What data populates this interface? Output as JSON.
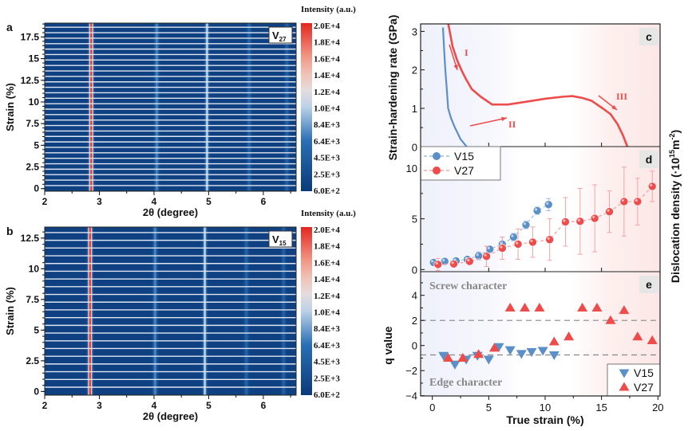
{
  "chart_data": [
    {
      "panel": "a",
      "type": "heatmap",
      "sample_label": "V27",
      "xlabel": "2θ (degree)",
      "ylabel": "Strain (%)",
      "xlim": [
        2,
        6.6
      ],
      "ylim": [
        -0.3,
        19.1
      ],
      "xticks": [
        2,
        3,
        4,
        5,
        6
      ],
      "yticks": [
        0,
        2.5,
        5,
        7.5,
        10,
        12.5,
        15,
        17.5
      ],
      "peaks_2theta": [
        2.85,
        4.05,
        4.97,
        5.74,
        6.43
      ],
      "colorbar": {
        "title": "Intensity (a.u.)",
        "labels": [
          "2.0E+4",
          "1.8E+4",
          "1.6E+4",
          "1.4E+4",
          "1.2E+4",
          "1.0E+4",
          "8.4E+3",
          "6.4E+3",
          "4.5E+3",
          "2.5E+3",
          "6.0E+2"
        ],
        "colors": [
          "#0b3a7a",
          "#2a6fb5",
          "#dfe9f3",
          "#f5b5a0",
          "#e3261f"
        ]
      }
    },
    {
      "panel": "b",
      "type": "heatmap",
      "sample_label": "V15",
      "xlabel": "2θ (degree)",
      "ylabel": "Strain (%)",
      "xlim": [
        2,
        6.6
      ],
      "ylim": [
        -0.3,
        13.4
      ],
      "xticks": [
        2,
        3,
        4,
        5,
        6
      ],
      "yticks": [
        0,
        2.5,
        5,
        7.5,
        10,
        12.5
      ],
      "peaks_2theta": [
        2.83,
        4.02,
        4.93,
        5.69,
        6.37
      ],
      "colorbar": {
        "title": "Intensity (a.u.)",
        "labels": [
          "2.0E+4",
          "1.8E+4",
          "1.6E+4",
          "1.4E+4",
          "1.2E+4",
          "1.0E+4",
          "8.4E+3",
          "6.4E+3",
          "4.5E+3",
          "2.5E+3",
          "6.0E+2"
        ]
      }
    },
    {
      "panel": "c",
      "type": "line",
      "ylabel": "Strain-hardening rate (GPa)",
      "xlim": [
        -1,
        20
      ],
      "ylim": [
        0,
        3.2
      ],
      "yticks": [
        0,
        1,
        2,
        3
      ],
      "annotations": [
        "I",
        "II",
        "III"
      ],
      "series": [
        {
          "name": "V15",
          "color": "#5b8fc7",
          "x": [
            0.94,
            1.05,
            1.15,
            1.28,
            1.4,
            1.65,
            2.0,
            2.5,
            3.06
          ],
          "y": [
            3.1,
            2.5,
            2.0,
            1.5,
            1.0,
            0.75,
            0.5,
            0.2,
            0.0
          ]
        },
        {
          "name": "V27",
          "color": "#ee4b4b",
          "x": [
            1.41,
            1.8,
            2.2,
            2.57,
            3.0,
            3.5,
            4.3,
            5.3,
            6.7,
            8.5,
            10.0,
            11.5,
            12.4,
            13.3,
            14.1,
            15.1,
            15.8,
            16.4,
            16.9,
            17.3
          ],
          "y": [
            3.2,
            2.6,
            2.25,
            2.0,
            1.75,
            1.5,
            1.3,
            1.1,
            1.1,
            1.18,
            1.25,
            1.3,
            1.32,
            1.27,
            1.2,
            1.0,
            0.85,
            0.6,
            0.3,
            0.0
          ]
        }
      ]
    },
    {
      "panel": "d",
      "type": "scatter",
      "ylabel": "Dislocation density (·10",
      "ylabel_sup1": "15",
      "ylabel_mid": "m",
      "ylabel_sup2": "-2",
      "ylabel_end": ")",
      "xlim": [
        -1,
        20
      ],
      "ylim": [
        -0.3,
        11.5
      ],
      "yticks": [
        0,
        5,
        10
      ],
      "legend": [
        "V15",
        "V27"
      ],
      "legend_position": "top-left",
      "series": [
        {
          "name": "V15",
          "color": "#5b8fc7",
          "x": [
            0.1,
            1.1,
            2.1,
            3.1,
            4.1,
            5.1,
            6.2,
            7.2,
            8.3,
            9.3,
            10.3
          ],
          "y": [
            0.7,
            0.8,
            0.85,
            1.0,
            1.35,
            2.0,
            2.5,
            3.2,
            4.4,
            5.8,
            6.4
          ],
          "err": [
            0.2,
            0.2,
            0.2,
            0.3,
            0.4,
            0.3,
            0.7,
            0.4,
            0.4,
            0.4,
            0.6
          ]
        },
        {
          "name": "V27",
          "color": "#ee4b4b",
          "x": [
            0.5,
            1.9,
            3.3,
            4.8,
            6.2,
            7.6,
            8.9,
            10.4,
            11.8,
            13.1,
            14.4,
            15.7,
            17.0,
            18.2,
            19.5
          ],
          "y": [
            0.5,
            0.55,
            0.8,
            1.3,
            2.1,
            2.5,
            2.7,
            2.95,
            4.7,
            4.75,
            5.05,
            5.7,
            6.7,
            6.7,
            8.2
          ],
          "err": [
            0.6,
            0.3,
            0.3,
            1.0,
            1.1,
            1.5,
            1.5,
            2.05,
            2.4,
            3.25,
            3.3,
            2.05,
            3.4,
            2.3,
            1.5
          ]
        }
      ]
    },
    {
      "panel": "e",
      "type": "scatter",
      "ylabel": "q value",
      "xlabel": "True strain (%)",
      "xlim": [
        -1,
        20
      ],
      "ylim": [
        -4,
        5.8
      ],
      "xticks": [
        0,
        5,
        10,
        15,
        20
      ],
      "yticks": [
        -4,
        -2,
        0,
        2,
        4
      ],
      "reference_lines": [
        2.0,
        -0.75
      ],
      "text_top": "Screw character",
      "text_bottom": "Edge character",
      "legend": [
        "V15",
        "V27"
      ],
      "legend_position": "bottom-right",
      "series": [
        {
          "name": "V15",
          "marker": "triangle-down",
          "color": "#5b8fc7",
          "x": [
            1.0,
            2.0,
            3.0,
            4.0,
            5.0,
            5.9,
            6.9,
            7.9,
            8.8,
            9.8,
            10.8
          ],
          "y": [
            -0.8,
            -1.5,
            -1.1,
            -0.8,
            -1.1,
            -0.1,
            -0.35,
            -0.65,
            -0.5,
            -0.4,
            -0.75
          ]
        },
        {
          "name": "V27",
          "marker": "triangle-up",
          "color": "#ee4b4b",
          "x": [
            1.4,
            2.7,
            4.1,
            5.5,
            6.9,
            8.2,
            9.5,
            10.8,
            12.1,
            13.3,
            14.6,
            15.8,
            17.0,
            18.2,
            19.5
          ],
          "y": [
            -1.0,
            -1.0,
            -0.7,
            -0.2,
            3.0,
            3.0,
            3.0,
            0.3,
            0.7,
            3.0,
            3.0,
            2.0,
            2.8,
            0.7,
            0.4
          ]
        }
      ]
    }
  ]
}
